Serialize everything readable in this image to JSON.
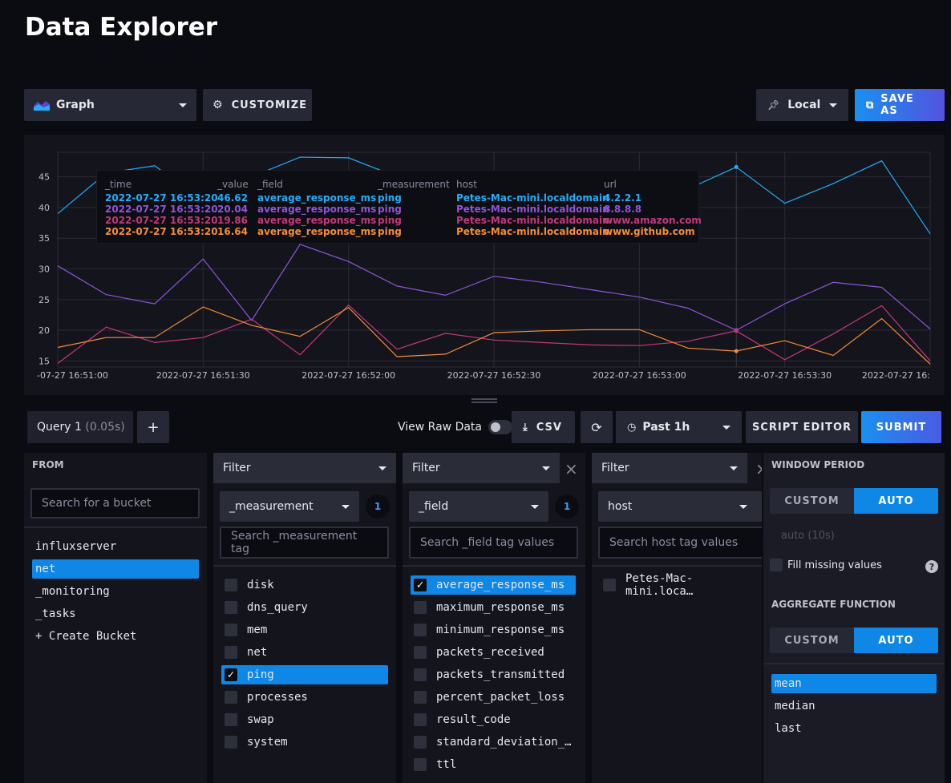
{
  "page": {
    "title": "Data Explorer"
  },
  "toolbar": {
    "vis_type": "Graph",
    "customize": "CUSTOMIZE",
    "timezone": "Local",
    "save_as": "SAVE AS"
  },
  "chart_data": {
    "type": "line",
    "ylim": [
      14,
      49
    ],
    "yticks": [
      15,
      20,
      25,
      30,
      35,
      40,
      45
    ],
    "xtick_labels": [
      "-07-27 16:51:00",
      "2022-07-27 16:51:30",
      "2022-07-27 16:52:00",
      "2022-07-27 16:52:30",
      "2022-07-27 16:53:00",
      "2022-07-27 16:53:30",
      "2022-07-27 16:"
    ],
    "x_seconds": [
      0,
      10,
      20,
      30,
      40,
      50,
      60,
      70,
      80,
      90,
      100,
      110,
      120,
      130,
      140,
      150,
      160,
      170,
      180
    ],
    "grid": true,
    "series": [
      {
        "name": "4.2.2.1",
        "color": "#22adf6",
        "values": [
          39,
          45.6,
          46.8,
          41,
          45,
          48.2,
          48.1,
          45,
          42,
          43,
          44,
          43,
          43,
          43,
          46.6,
          40.7,
          43.9,
          47.6,
          35.7
        ]
      },
      {
        "name": "8.8.8.8",
        "color": "#8e55d8",
        "values": [
          30.5,
          25.8,
          24.3,
          31.6,
          21.6,
          34,
          31.2,
          27.2,
          25.7,
          28.8,
          27.8,
          26.6,
          25.4,
          23.6,
          20,
          24.3,
          27.8,
          27,
          20.2
        ]
      },
      {
        "name": "www.amazon.com",
        "color": "#c2397b",
        "values": [
          14.6,
          20.5,
          18,
          18.8,
          21.8,
          16,
          24.1,
          16.9,
          19.5,
          18.4,
          18,
          17.6,
          17.5,
          18.2,
          19.9,
          15.2,
          19.4,
          24,
          15
        ]
      },
      {
        "name": "www.github.com",
        "color": "#f48d38",
        "values": [
          17.2,
          18.8,
          18.8,
          23.8,
          20.8,
          19,
          23.7,
          15.7,
          16.1,
          19.6,
          19.9,
          20.1,
          20.1,
          17.1,
          16.6,
          18.3,
          15.9,
          21.9,
          14.5
        ]
      }
    ]
  },
  "tooltip": {
    "headers": [
      "_time",
      "_value",
      "_field",
      "_measurement",
      "host",
      "url"
    ],
    "rows": [
      {
        "time": "2022-07-27 16:53:20",
        "value": "46.62",
        "field": "average_response_ms",
        "measurement": "ping",
        "host": "Petes-Mac-mini.localdomain",
        "url": "4.2.2.1",
        "color": "#22adf6"
      },
      {
        "time": "2022-07-27 16:53:20",
        "value": "20.04",
        "field": "average_response_ms",
        "measurement": "ping",
        "host": "Petes-Mac-mini.localdomain",
        "url": "8.8.8.8",
        "color": "#8e55d8"
      },
      {
        "time": "2022-07-27 16:53:20",
        "value": "19.86",
        "field": "average_response_ms",
        "measurement": "ping",
        "host": "Petes-Mac-mini.localdomain",
        "url": "www.amazon.com",
        "color": "#c2397b"
      },
      {
        "time": "2022-07-27 16:53:20",
        "value": "16.64",
        "field": "average_response_ms",
        "measurement": "ping",
        "host": "Petes-Mac-mini.localdomain",
        "url": "www.github.com",
        "color": "#f48d38"
      }
    ]
  },
  "query_bar": {
    "tab_label": "Query 1",
    "tab_time": "(0.05s)",
    "add": "+",
    "view_raw": "View Raw Data",
    "csv": "CSV",
    "range": "Past 1h",
    "script_editor": "SCRIPT EDITOR",
    "submit": "SUBMIT"
  },
  "from": {
    "header": "FROM",
    "search_placeholder": "Search for a bucket",
    "buckets": [
      "influxserver",
      "net",
      "_monitoring",
      "_tasks",
      "+ Create Bucket"
    ],
    "selected": "net"
  },
  "filters": [
    {
      "header": "Filter",
      "key": "_measurement",
      "count": "1",
      "search_placeholder": "Search _measurement tag",
      "values": [
        {
          "label": "disk",
          "checked": false
        },
        {
          "label": "dns_query",
          "checked": false
        },
        {
          "label": "mem",
          "checked": false
        },
        {
          "label": "net",
          "checked": false
        },
        {
          "label": "ping",
          "checked": true
        },
        {
          "label": "processes",
          "checked": false
        },
        {
          "label": "swap",
          "checked": false
        },
        {
          "label": "system",
          "checked": false
        }
      ]
    },
    {
      "header": "Filter",
      "key": "_field",
      "count": "1",
      "close": "×",
      "search_placeholder": "Search _field tag values",
      "values": [
        {
          "label": "average_response_ms",
          "checked": true
        },
        {
          "label": "maximum_response_ms",
          "checked": false
        },
        {
          "label": "minimum_response_ms",
          "checked": false
        },
        {
          "label": "packets_received",
          "checked": false
        },
        {
          "label": "packets_transmitted",
          "checked": false
        },
        {
          "label": "percent_packet_loss",
          "checked": false
        },
        {
          "label": "result_code",
          "checked": false
        },
        {
          "label": "standard_deviation_…",
          "checked": false
        },
        {
          "label": "ttl",
          "checked": false
        }
      ]
    },
    {
      "header": "Filter",
      "key": "host",
      "close": "×",
      "search_placeholder": "Search host tag values",
      "values": [
        {
          "label": "Petes-Mac-mini.loca…",
          "checked": false
        }
      ]
    }
  ],
  "window": {
    "header": "WINDOW PERIOD",
    "custom": "CUSTOM",
    "auto": "AUTO",
    "auto_value": "auto (10s)",
    "fill_missing": "Fill missing values",
    "help": "?",
    "agg_header": "AGGREGATE FUNCTION",
    "functions": [
      "mean",
      "median",
      "last"
    ],
    "selected_function": "mean"
  },
  "colors": {
    "accent": "#0f87e6",
    "save_gradient": "#1f6fe0",
    "submit": "#2b6fe8"
  }
}
